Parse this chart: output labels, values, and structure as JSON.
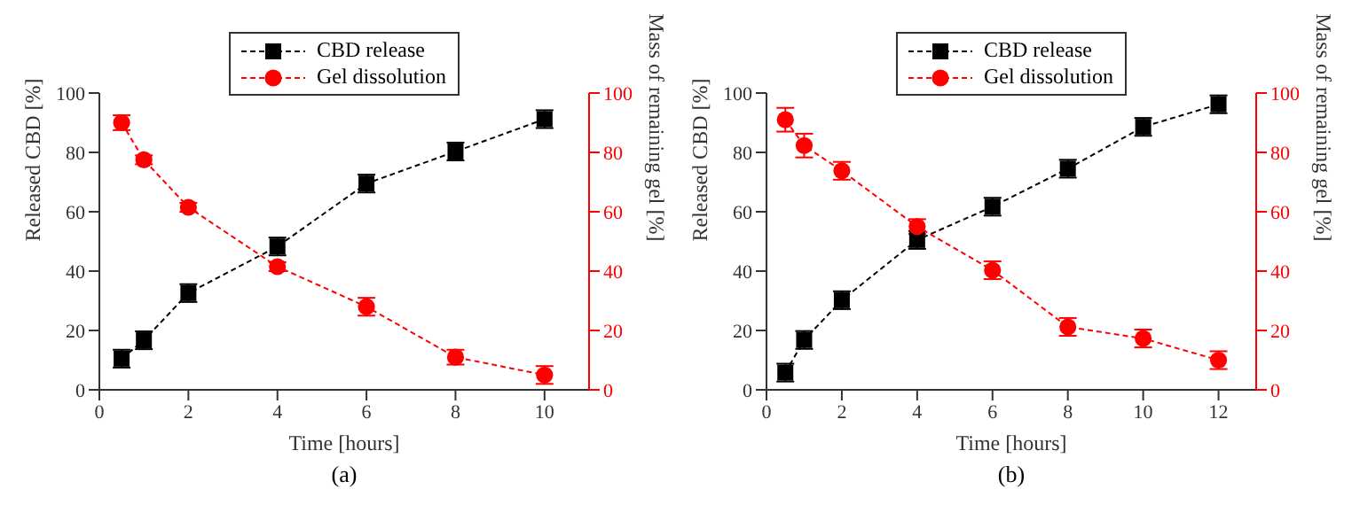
{
  "chart_data": [
    {
      "type": "line",
      "xlabel": "Time [hours]",
      "ylabel": "Released CBD [%]",
      "y2label": "Mass of remaining gel [%]",
      "x": [
        0.5,
        1,
        2,
        4,
        6,
        8,
        10
      ],
      "xlim": [
        0,
        11
      ],
      "xticks": [
        0,
        2,
        4,
        6,
        8,
        10
      ],
      "ylim": [
        0,
        100
      ],
      "yticks": [
        0,
        20,
        40,
        60,
        80,
        100
      ],
      "y2lim": [
        0,
        100
      ],
      "y2ticks": [
        0,
        20,
        40,
        60,
        80,
        100
      ],
      "legend": "top",
      "line_style": "dashed",
      "grid": false,
      "annotations": [
        "(a)"
      ],
      "series": [
        {
          "name": "CBD release",
          "color": "#000000",
          "marker": "square",
          "values": [
            10.5,
            16.7,
            32.6,
            48.3,
            69.5,
            80.3,
            91.2
          ],
          "errors": [
            3,
            3,
            3,
            3,
            3,
            3,
            3
          ]
        },
        {
          "name": "Gel dissolution",
          "color": "#ff0000",
          "marker": "circle",
          "axis": "y2",
          "values": [
            90,
            77.5,
            61.5,
            41.5,
            28,
            11,
            5
          ],
          "errors": [
            2.5,
            1.5,
            1.5,
            1.5,
            3,
            2.5,
            3
          ]
        }
      ]
    },
    {
      "type": "line",
      "xlabel": "Time [hours]",
      "ylabel": "Released CBD [%]",
      "y2label": "Mass of remaining gel [%]",
      "x": [
        0.5,
        1,
        2,
        4,
        6,
        8,
        10,
        12
      ],
      "xlim": [
        0,
        13
      ],
      "xticks": [
        0,
        2,
        4,
        6,
        8,
        10,
        12
      ],
      "ylim": [
        0,
        100
      ],
      "yticks": [
        0,
        20,
        40,
        60,
        80,
        100
      ],
      "y2lim": [
        0,
        100
      ],
      "y2ticks": [
        0,
        20,
        40,
        60,
        80,
        100
      ],
      "legend": "top",
      "line_style": "dashed",
      "grid": false,
      "annotations": [
        "(b)"
      ],
      "series": [
        {
          "name": "CBD release",
          "color": "#000000",
          "marker": "square",
          "values": [
            5.8,
            16.8,
            30.2,
            50.5,
            61.7,
            74.5,
            88.6,
            96.2
          ],
          "errors": [
            3,
            3,
            3,
            3,
            3,
            3,
            3,
            3
          ]
        },
        {
          "name": "Gel dissolution",
          "color": "#ff0000",
          "marker": "circle",
          "axis": "y2",
          "values": [
            91,
            82.3,
            73.8,
            55,
            40.3,
            21.2,
            17.3,
            10
          ],
          "errors": [
            4,
            4,
            3,
            2.5,
            3,
            3,
            3,
            3
          ]
        }
      ]
    }
  ]
}
